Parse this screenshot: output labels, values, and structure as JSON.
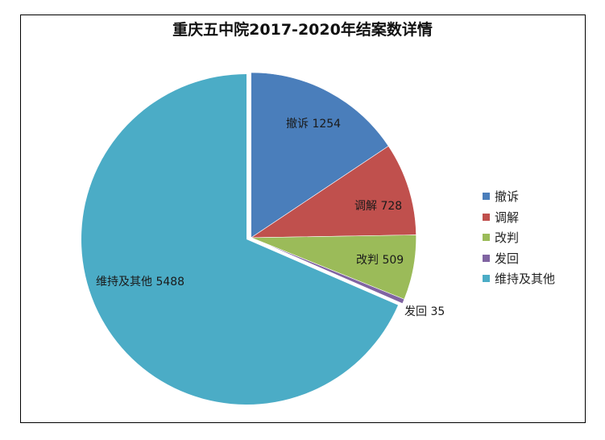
{
  "chart_data": {
    "type": "pie",
    "title": "重庆五中院2017-2020年结案数详情",
    "categories": [
      "撤诉",
      "调解",
      "改判",
      "发回",
      "维持及其他"
    ],
    "values": [
      1254,
      728,
      509,
      35,
      5488
    ],
    "colors": [
      "#4a7ebb",
      "#c0504d",
      "#9bbb59",
      "#8064a2",
      "#4bacc6"
    ],
    "data_labels": [
      "撤诉 1254",
      "调解 728",
      "改判 509",
      "发回 35",
      "维持及其他 5488"
    ],
    "legend_position": "right",
    "start_angle": "12 o'clock, clockwise",
    "exploded": [
      "撤诉",
      "调解",
      "改判",
      "发回"
    ]
  },
  "title": "重庆五中院2017-2020年结案数详情",
  "labels": {
    "s0": "撤诉 1254",
    "s1": "调解 728",
    "s2": "改判 509",
    "s3": "发回 35",
    "s4": "维持及其他 5488"
  },
  "legend": [
    {
      "label": "撤诉",
      "color": "#4a7ebb"
    },
    {
      "label": "调解",
      "color": "#c0504d"
    },
    {
      "label": "改判",
      "color": "#9bbb59"
    },
    {
      "label": "发回",
      "color": "#8064a2"
    },
    {
      "label": "维持及其他",
      "color": "#4bacc6"
    }
  ]
}
